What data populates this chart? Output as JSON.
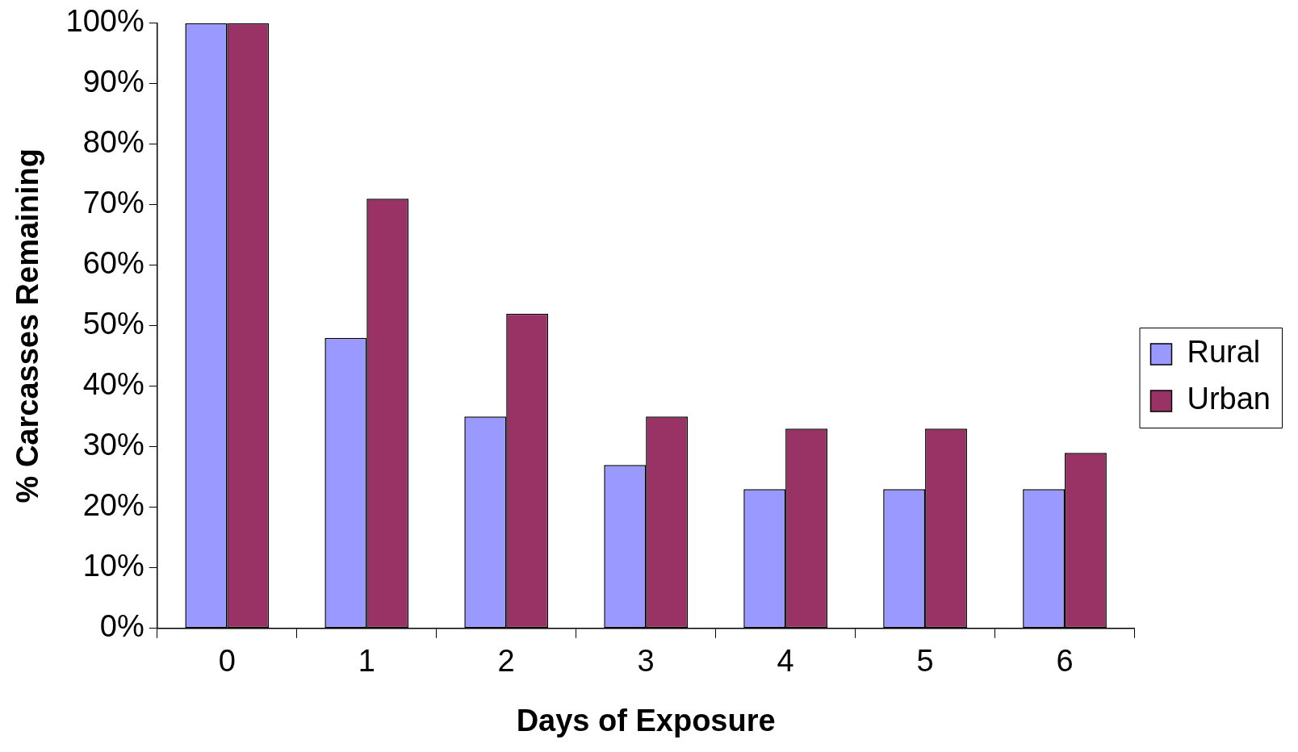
{
  "chart_data": {
    "type": "bar",
    "xlabel": "Days of Exposure",
    "ylabel": "% Carcasses Remaining",
    "categories": [
      "0",
      "1",
      "2",
      "3",
      "4",
      "5",
      "6"
    ],
    "series": [
      {
        "name": "Rural",
        "color": "#9999ff",
        "values": [
          100,
          48,
          35,
          27,
          23,
          23,
          23
        ]
      },
      {
        "name": "Urban",
        "color": "#993366",
        "values": [
          100,
          71,
          52,
          35,
          33,
          33,
          29
        ]
      }
    ],
    "ylim": [
      0,
      100
    ],
    "yticks": [
      {
        "value": 0,
        "label": "0%"
      },
      {
        "value": 10,
        "label": "10%"
      },
      {
        "value": 20,
        "label": "20%"
      },
      {
        "value": 30,
        "label": "30%"
      },
      {
        "value": 40,
        "label": "40%"
      },
      {
        "value": 50,
        "label": "50%"
      },
      {
        "value": 60,
        "label": "60%"
      },
      {
        "value": 70,
        "label": "70%"
      },
      {
        "value": 80,
        "label": "80%"
      },
      {
        "value": 90,
        "label": "90%"
      },
      {
        "value": 100,
        "label": "100%"
      }
    ],
    "grid": false,
    "legend": "right"
  }
}
